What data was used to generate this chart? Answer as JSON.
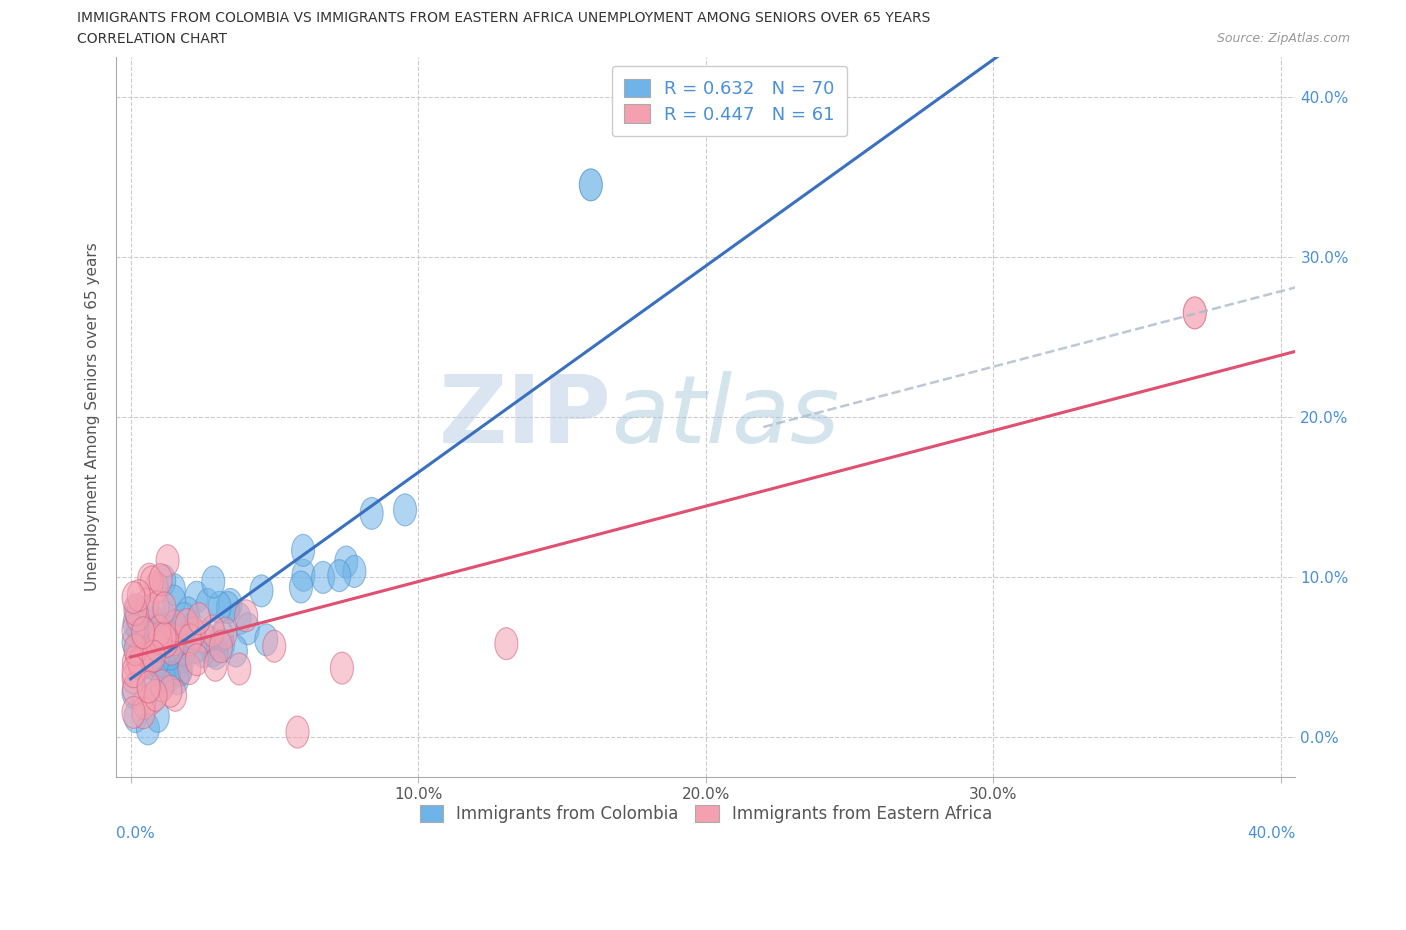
{
  "title_line1": "IMMIGRANTS FROM COLOMBIA VS IMMIGRANTS FROM EASTERN AFRICA UNEMPLOYMENT AMONG SENIORS OVER 65 YEARS",
  "title_line2": "CORRELATION CHART",
  "source": "Source: ZipAtlas.com",
  "ylabel": "Unemployment Among Seniors over 65 years",
  "xlim": [
    -0.005,
    0.405
  ],
  "ylim": [
    -0.025,
    0.425
  ],
  "xticks": [
    0.0,
    0.1,
    0.2,
    0.3,
    0.4
  ],
  "yticks": [
    0.0,
    0.1,
    0.2,
    0.3,
    0.4
  ],
  "xtick_labels": [
    "",
    "10.0%",
    "20.0%",
    "30.0%",
    ""
  ],
  "ytick_labels": [
    "0.0%",
    "10.0%",
    "20.0%",
    "30.0%",
    "40.0%"
  ],
  "x_bottom_labels": [
    "0.0%",
    "40.0%"
  ],
  "colombia_color": "#6EB4E8",
  "colombia_edge_color": "#5090C8",
  "eastern_africa_color": "#F4A0B0",
  "eastern_africa_edge_color": "#D06080",
  "regression_colombia_color": "#3A70C0",
  "regression_ea_color": "#E05070",
  "colombia_R": 0.632,
  "colombia_N": 70,
  "eastern_africa_R": 0.447,
  "eastern_africa_N": 61,
  "legend_label_colombia": "Immigrants from Colombia",
  "legend_label_eastern_africa": "Immigrants from Eastern Africa",
  "watermark_zip": "ZIP",
  "watermark_atlas": "atlas"
}
